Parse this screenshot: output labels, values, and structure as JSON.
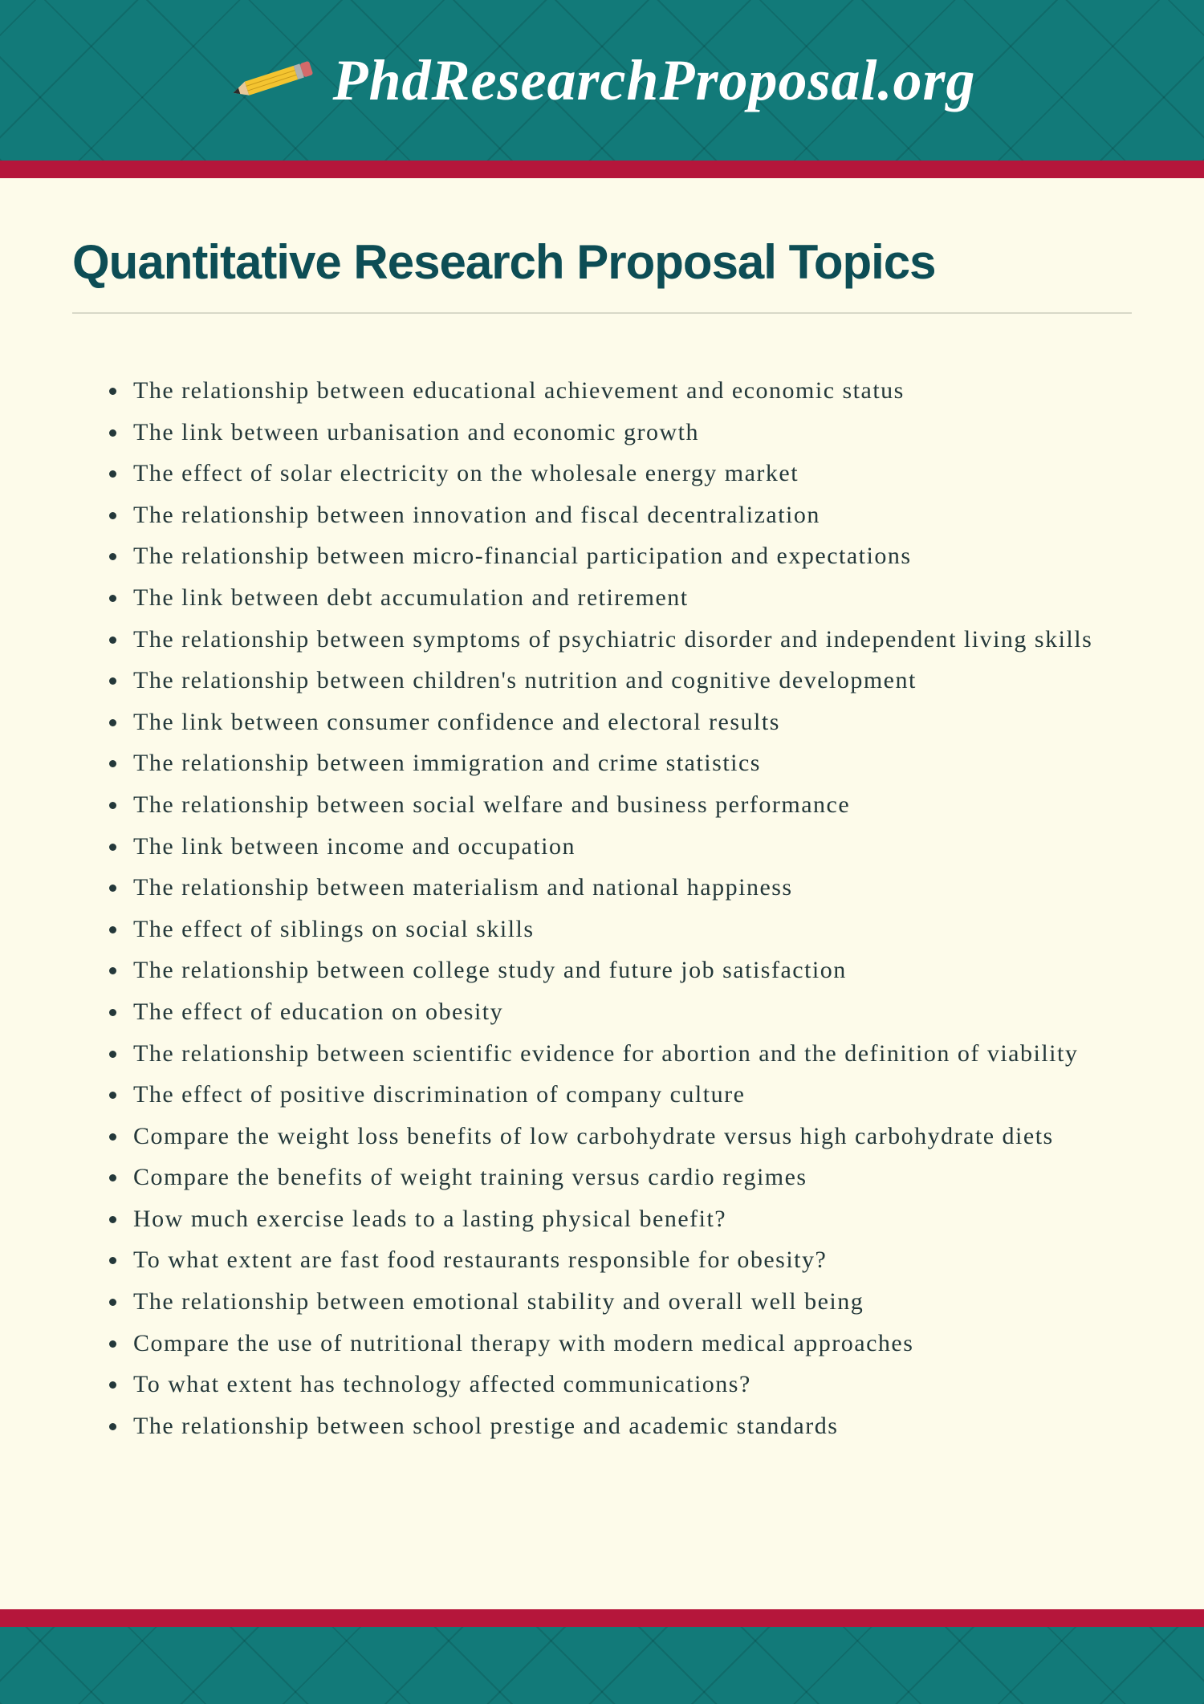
{
  "header": {
    "site_name": "PhdResearchProposal.org",
    "banner_bg_color": "#127a79",
    "accent_bar_color": "#b5163b",
    "pencil_body_color": "#f4c430",
    "pencil_tip_color": "#e8c89a",
    "pencil_lead_color": "#2b2b2b",
    "pencil_ferrule_color": "#b0b0b0",
    "pencil_eraser_color": "#d46a6a"
  },
  "page": {
    "title": "Quantitative Research Proposal Topics",
    "title_color": "#0d4d55",
    "body_bg_color": "#fdfbea",
    "text_color": "#24383a",
    "title_fontsize": 60,
    "body_fontsize": 30
  },
  "topics": [
    "The relationship between educational achievement and economic status",
    "The link between urbanisation and economic growth",
    "The effect of solar electricity on the wholesale energy market",
    "The relationship between innovation and fiscal decentralization",
    "The relationship between micro-financial participation and expectations",
    "The link between debt accumulation and retirement",
    "The relationship between symptoms of psychiatric disorder and independent living skills",
    "The relationship between children's nutrition and cognitive development",
    "The link between consumer confidence and electoral results",
    "The relationship between immigration and crime statistics",
    "The relationship between social welfare and business performance",
    "The link between income and occupation",
    "The relationship between materialism and national happiness",
    "The effect of siblings on social skills",
    "The relationship between college study and future job satisfaction",
    "The effect of education on obesity",
    "The relationship between scientific evidence for abortion and the definition of viability",
    "The effect of positive discrimination of company culture",
    "Compare the weight loss benefits of low carbohydrate versus high carbohydrate diets",
    "Compare the benefits of weight training versus cardio regimes",
    "How much exercise leads to a lasting physical benefit?",
    "To what extent are fast food restaurants responsible for obesity?",
    "The relationship between emotional stability and overall well being",
    "Compare the use of nutritional therapy with modern medical approaches",
    "To what extent has technology affected communications?",
    "The relationship between school prestige and academic standards"
  ]
}
